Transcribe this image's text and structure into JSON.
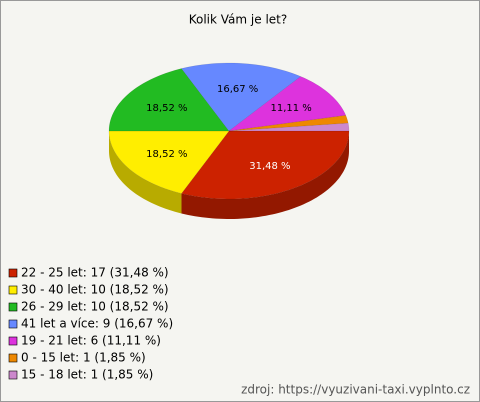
{
  "chart_data": {
    "type": "pie",
    "title": "Kolik Vám je let?",
    "categories": [
      "22 - 25 let: 17 (31,48 %)",
      "30 - 40 let: 10 (18,52 %)",
      "26 - 29 let: 10 (18,52 %)",
      "41 let a více: 9 (16,67 %)",
      "19 - 21 let: 6 (11,11 %)",
      "0 - 15 let: 1 (1,85 %)",
      "15 - 18 let: 1 (1,85 %)"
    ],
    "values": [
      31.48,
      18.52,
      18.52,
      16.67,
      11.11,
      1.85,
      1.85
    ],
    "value_labels": [
      "31,48 %",
      "18,52 %",
      "18,52 %",
      "16,67 %",
      "11,11 %",
      null,
      null
    ],
    "colors": [
      "#cc2200",
      "#ffee00",
      "#22bb22",
      "#6688ff",
      "#dd33dd",
      "#ee8800",
      "#cc88cc"
    ],
    "source": "zdroj: https://vyuzivani-taxi.vyplnto.cz"
  }
}
